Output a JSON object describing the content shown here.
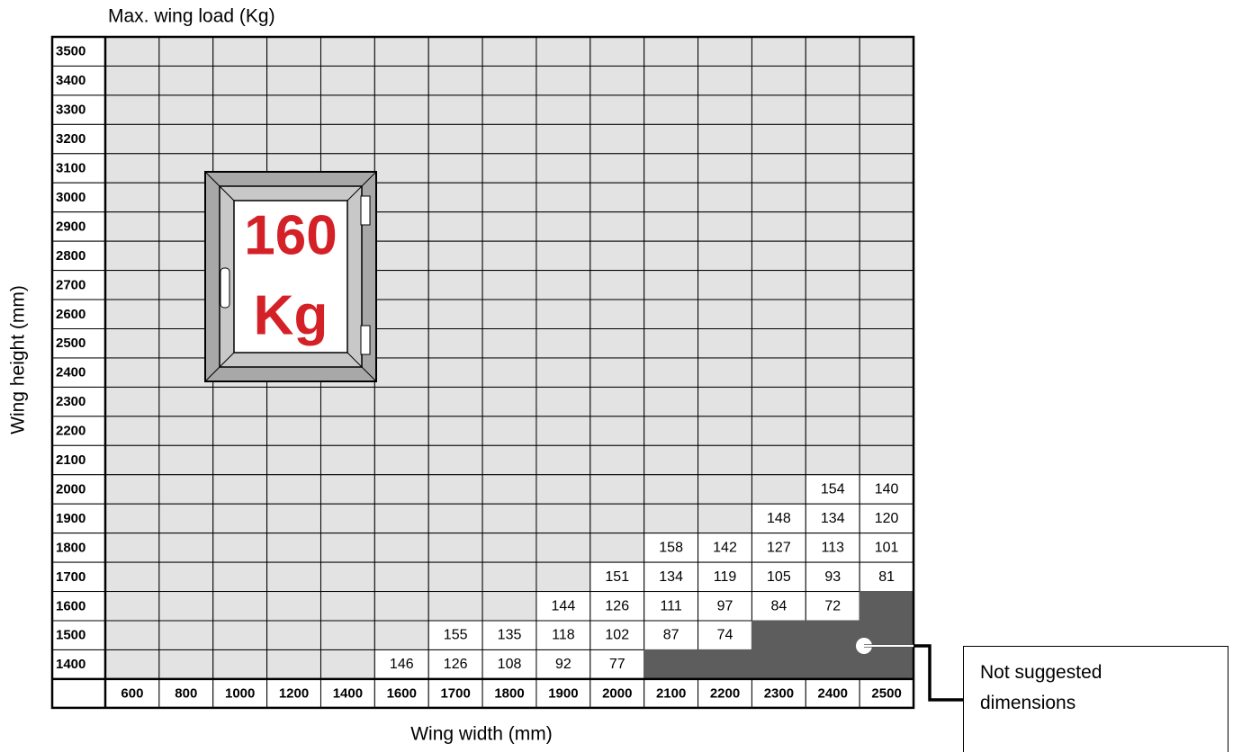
{
  "title": "Max. wing load  (Kg)",
  "y_axis_label": "Wing height (mm)",
  "x_axis_label": "Wing width (mm)",
  "badge": {
    "value": "160",
    "unit": "Kg"
  },
  "legend": "Not suggested dimensions",
  "table": {
    "columns": [
      600,
      800,
      1000,
      1200,
      1400,
      1600,
      1700,
      1800,
      1900,
      2000,
      2100,
      2200,
      2300,
      2400,
      2500
    ],
    "rows": [
      {
        "height": 3500,
        "cells": [
          null,
          null,
          null,
          null,
          null,
          null,
          null,
          null,
          null,
          null,
          null,
          null,
          null,
          null,
          null
        ]
      },
      {
        "height": 3400,
        "cells": [
          null,
          null,
          null,
          null,
          null,
          null,
          null,
          null,
          null,
          null,
          null,
          null,
          null,
          null,
          null
        ]
      },
      {
        "height": 3300,
        "cells": [
          null,
          null,
          null,
          null,
          null,
          null,
          null,
          null,
          null,
          null,
          null,
          null,
          null,
          null,
          null
        ]
      },
      {
        "height": 3200,
        "cells": [
          null,
          null,
          null,
          null,
          null,
          null,
          null,
          null,
          null,
          null,
          null,
          null,
          null,
          null,
          null
        ]
      },
      {
        "height": 3100,
        "cells": [
          null,
          null,
          null,
          null,
          null,
          null,
          null,
          null,
          null,
          null,
          null,
          null,
          null,
          null,
          null
        ]
      },
      {
        "height": 3000,
        "cells": [
          null,
          null,
          null,
          null,
          null,
          null,
          null,
          null,
          null,
          null,
          null,
          null,
          null,
          null,
          null
        ]
      },
      {
        "height": 2900,
        "cells": [
          null,
          null,
          null,
          null,
          null,
          null,
          null,
          null,
          null,
          null,
          null,
          null,
          null,
          null,
          null
        ]
      },
      {
        "height": 2800,
        "cells": [
          null,
          null,
          null,
          null,
          null,
          null,
          null,
          null,
          null,
          null,
          null,
          null,
          null,
          null,
          null
        ]
      },
      {
        "height": 2700,
        "cells": [
          null,
          null,
          null,
          null,
          null,
          null,
          null,
          null,
          null,
          null,
          null,
          null,
          null,
          null,
          null
        ]
      },
      {
        "height": 2600,
        "cells": [
          null,
          null,
          null,
          null,
          null,
          null,
          null,
          null,
          null,
          null,
          null,
          null,
          null,
          null,
          null
        ]
      },
      {
        "height": 2500,
        "cells": [
          null,
          null,
          null,
          null,
          null,
          null,
          null,
          null,
          null,
          null,
          null,
          null,
          null,
          null,
          null
        ]
      },
      {
        "height": 2400,
        "cells": [
          null,
          null,
          null,
          null,
          null,
          null,
          null,
          null,
          null,
          null,
          null,
          null,
          null,
          null,
          null
        ]
      },
      {
        "height": 2300,
        "cells": [
          null,
          null,
          null,
          null,
          null,
          null,
          null,
          null,
          null,
          null,
          null,
          null,
          null,
          null,
          null
        ]
      },
      {
        "height": 2200,
        "cells": [
          null,
          null,
          null,
          null,
          null,
          null,
          null,
          null,
          null,
          null,
          null,
          null,
          null,
          null,
          null
        ]
      },
      {
        "height": 2100,
        "cells": [
          null,
          null,
          null,
          null,
          null,
          null,
          null,
          null,
          null,
          null,
          null,
          null,
          null,
          null,
          null
        ]
      },
      {
        "height": 2000,
        "cells": [
          null,
          null,
          null,
          null,
          null,
          null,
          null,
          null,
          null,
          null,
          null,
          null,
          null,
          154,
          140
        ]
      },
      {
        "height": 1900,
        "cells": [
          null,
          null,
          null,
          null,
          null,
          null,
          null,
          null,
          null,
          null,
          null,
          null,
          148,
          134,
          120
        ]
      },
      {
        "height": 1800,
        "cells": [
          null,
          null,
          null,
          null,
          null,
          null,
          null,
          null,
          null,
          null,
          158,
          142,
          127,
          113,
          101
        ]
      },
      {
        "height": 1700,
        "cells": [
          null,
          null,
          null,
          null,
          null,
          null,
          null,
          null,
          null,
          151,
          134,
          119,
          105,
          93,
          81
        ]
      },
      {
        "height": 1600,
        "cells": [
          null,
          null,
          null,
          null,
          null,
          null,
          null,
          null,
          144,
          126,
          111,
          97,
          84,
          72,
          null
        ]
      },
      {
        "height": 1500,
        "cells": [
          null,
          null,
          null,
          null,
          null,
          null,
          155,
          135,
          118,
          102,
          87,
          74,
          null,
          null,
          null
        ]
      },
      {
        "height": 1400,
        "cells": [
          null,
          null,
          null,
          null,
          null,
          146,
          126,
          108,
          92,
          77,
          null,
          null,
          null,
          null,
          null
        ]
      }
    ],
    "not_suggested": [
      {
        "width": 2500,
        "height": 1600
      },
      {
        "width": 2300,
        "height": 1500
      },
      {
        "width": 2400,
        "height": 1500
      },
      {
        "width": 2500,
        "height": 1500
      },
      {
        "width": 2100,
        "height": 1400
      },
      {
        "width": 2200,
        "height": 1400
      },
      {
        "width": 2300,
        "height": 1400
      },
      {
        "width": 2400,
        "height": 1400
      },
      {
        "width": 2500,
        "height": 1400
      }
    ]
  }
}
